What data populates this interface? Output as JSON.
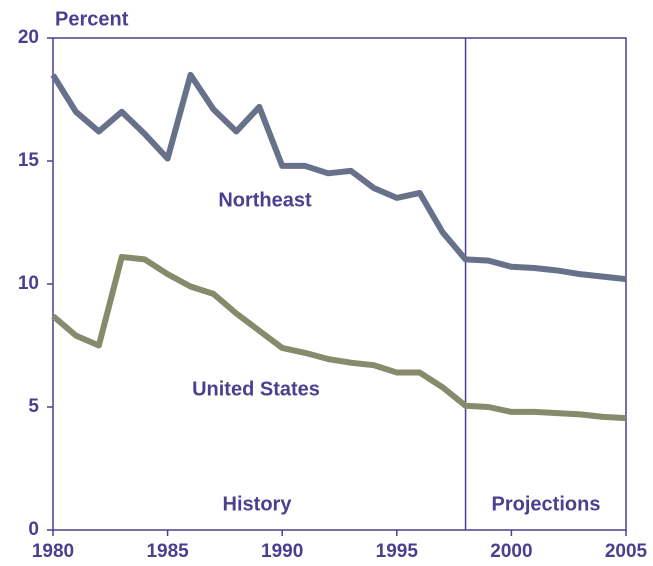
{
  "chart_data": {
    "type": "line",
    "y_label": "Percent",
    "x": [
      1980,
      1981,
      1982,
      1983,
      1984,
      1985,
      1986,
      1987,
      1988,
      1989,
      1990,
      1991,
      1992,
      1993,
      1994,
      1995,
      1996,
      1997,
      1998,
      1999,
      2000,
      2001,
      2002,
      2003,
      2004,
      2005
    ],
    "series": [
      {
        "name": "Northeast",
        "color": "#67718a",
        "values": [
          18.5,
          17.0,
          16.2,
          17.0,
          16.1,
          15.1,
          18.5,
          17.1,
          16.2,
          17.2,
          14.8,
          14.8,
          14.5,
          14.6,
          13.9,
          13.5,
          13.7,
          12.1,
          11.0,
          10.95,
          10.7,
          10.65,
          10.55,
          10.4,
          10.3,
          10.2
        ]
      },
      {
        "name": "United States",
        "color": "#878a6b",
        "values": [
          8.7,
          7.9,
          7.5,
          11.1,
          11.0,
          10.4,
          9.9,
          9.6,
          8.8,
          8.1,
          7.4,
          7.2,
          6.95,
          6.8,
          6.7,
          6.4,
          6.4,
          5.8,
          5.05,
          5.0,
          4.8,
          4.8,
          4.75,
          4.7,
          4.6,
          4.55
        ]
      }
    ],
    "divider_x": 1998,
    "annotations": [
      "History",
      "Projections"
    ],
    "xlim": [
      1980,
      2005
    ],
    "xticks": [
      1980,
      1985,
      1990,
      1995,
      2000,
      2005
    ],
    "ylim": [
      0,
      20
    ],
    "yticks": [
      0,
      5,
      10,
      15,
      20
    ],
    "axis_color": "#4b3f8f"
  }
}
